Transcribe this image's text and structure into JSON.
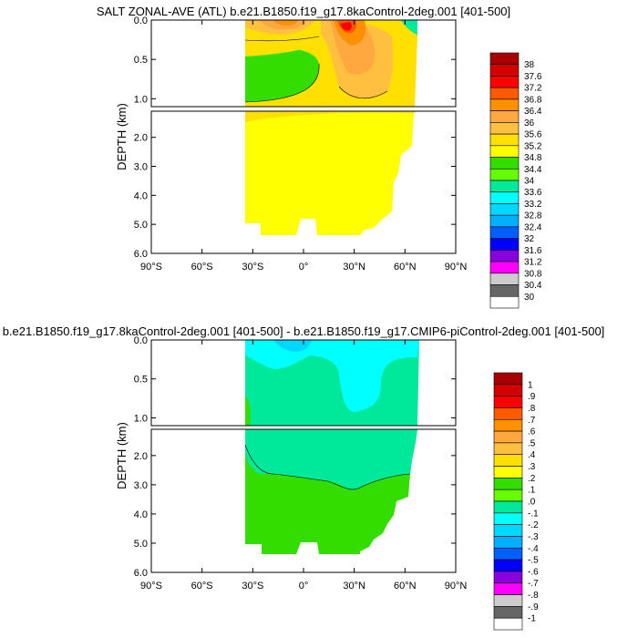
{
  "chart_data": [
    {
      "type": "heatmap",
      "title": "SALT ZONAL-AVE (ATL) b.e21.B1850.f19_g17.8kaControl-2deg.001 [401-500]",
      "ylabel": "DEPTH (km)",
      "x_ticks": [
        "90°S",
        "60°S",
        "30°S",
        "0°",
        "30°N",
        "60°N",
        "90°N"
      ],
      "x_tick_values": [
        -90,
        -60,
        -30,
        0,
        30,
        60,
        90
      ],
      "xlim": [
        -90,
        90
      ],
      "upper_panel": {
        "ylim": [
          0,
          1.1
        ],
        "y_ticks": [
          "0.0",
          "0.5",
          "1.0"
        ],
        "y_tick_values": [
          0,
          0.5,
          1.0
        ]
      },
      "lower_panel": {
        "ylim": [
          1.1,
          6.0
        ],
        "y_ticks": [
          "2.0",
          "3.0",
          "4.0",
          "5.0",
          "6.0"
        ],
        "y_tick_values": [
          2,
          3,
          4,
          5,
          6
        ]
      },
      "colorbar": {
        "labels": [
          "38",
          "37.6",
          "37.2",
          "36.8",
          "36.4",
          "36",
          "35.6",
          "35.2",
          "34.8",
          "34.4",
          "34",
          "33.6",
          "33.2",
          "32.8",
          "32.4",
          "32",
          "31.6",
          "31.2",
          "30.8",
          "30.4",
          "30"
        ],
        "colors": [
          "#a80000",
          "#d40000",
          "#ff0000",
          "#ff5a00",
          "#ff9000",
          "#ffa840",
          "#ffc040",
          "#ffe000",
          "#ffff00",
          "#33dd00",
          "#66ff00",
          "#00e89a",
          "#00ffff",
          "#00d8ff",
          "#00b0ff",
          "#0060ff",
          "#0000ff",
          "#8800dd",
          "#ff00ff",
          "#cccccc",
          "#666666",
          "#ffffff"
        ]
      }
    },
    {
      "type": "heatmap",
      "title": "b.e21.B1850.f19_g17.8kaControl-2deg.001 [401-500] - b.e21.B1850.f19_g17.CMIP6-piControl-2deg.001 [401-500]",
      "ylabel": "DEPTH (km)",
      "x_ticks": [
        "90°S",
        "60°S",
        "30°S",
        "0°",
        "30°N",
        "60°N",
        "90°N"
      ],
      "x_tick_values": [
        -90,
        -60,
        -30,
        0,
        30,
        60,
        90
      ],
      "xlim": [
        -90,
        90
      ],
      "upper_panel": {
        "ylim": [
          0,
          1.1
        ],
        "y_ticks": [
          "0.0",
          "0.5",
          "1.0"
        ],
        "y_tick_values": [
          0,
          0.5,
          1.0
        ]
      },
      "lower_panel": {
        "ylim": [
          1.1,
          6.0
        ],
        "y_ticks": [
          "2.0",
          "3.0",
          "4.0",
          "5.0",
          "6.0"
        ],
        "y_tick_values": [
          2,
          3,
          4,
          5,
          6
        ]
      },
      "colorbar": {
        "labels": [
          "1",
          ".9",
          ".8",
          ".7",
          ".6",
          ".5",
          ".4",
          ".3",
          ".2",
          ".1",
          ".0",
          "-.1",
          "-.2",
          "-.3",
          "-.4",
          "-.5",
          "-.6",
          "-.7",
          "-.8",
          "-.9",
          "-1"
        ],
        "colors": [
          "#a80000",
          "#d40000",
          "#ff0000",
          "#ff5a00",
          "#ff9000",
          "#ffa840",
          "#ffc040",
          "#ffe000",
          "#ffff00",
          "#33dd00",
          "#66ff00",
          "#00e89a",
          "#00ffff",
          "#00d8ff",
          "#00b0ff",
          "#0060ff",
          "#0000ff",
          "#8800dd",
          "#ff00ff",
          "#cccccc",
          "#666666",
          "#ffffff"
        ]
      }
    }
  ]
}
